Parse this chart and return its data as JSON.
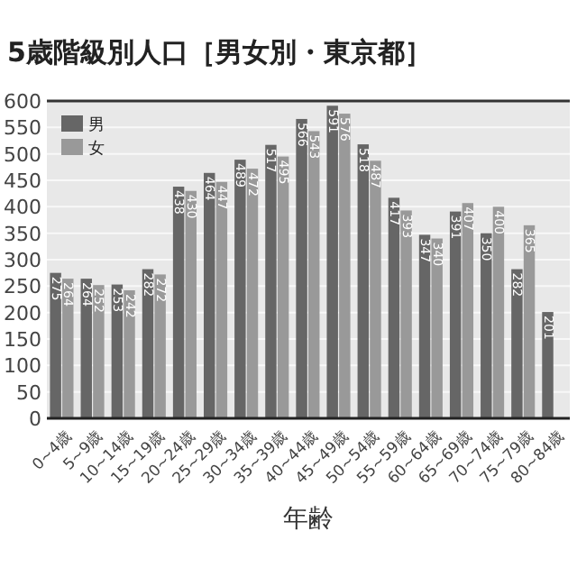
{
  "chart_data": {
    "type": "bar",
    "title": "5歳階級別人口［男女別・東京都］",
    "xlabel": "年齢",
    "categories": [
      "0~4歳",
      "5~9歳",
      "10~14歳",
      "15~19歳",
      "20~24歳",
      "25~29歳",
      "30~34歳",
      "35~39歳",
      "40~44歳",
      "45~49歳",
      "50~54歳",
      "55~59歳",
      "60~64歳",
      "65~69歳",
      "70~74歳",
      "75~79歳",
      "80~84歳"
    ],
    "series": [
      {
        "name": "男",
        "color": "#666666",
        "values": [
          275,
          264,
          253,
          282,
          438,
          464,
          489,
          517,
          566,
          591,
          518,
          417,
          347,
          391,
          350,
          282,
          201
        ]
      },
      {
        "name": "女",
        "color": "#999999",
        "values": [
          264,
          252,
          242,
          272,
          430,
          447,
          472,
          495,
          543,
          576,
          487,
          393,
          340,
          407,
          400,
          365,
          null
        ]
      }
    ],
    "ylim": [
      0,
      600
    ],
    "yticks": [
      0,
      50,
      100,
      150,
      200,
      250,
      300,
      350,
      400,
      450,
      500,
      550,
      600
    ],
    "grid": "y",
    "legend": "top left",
    "data_labels": true
  }
}
